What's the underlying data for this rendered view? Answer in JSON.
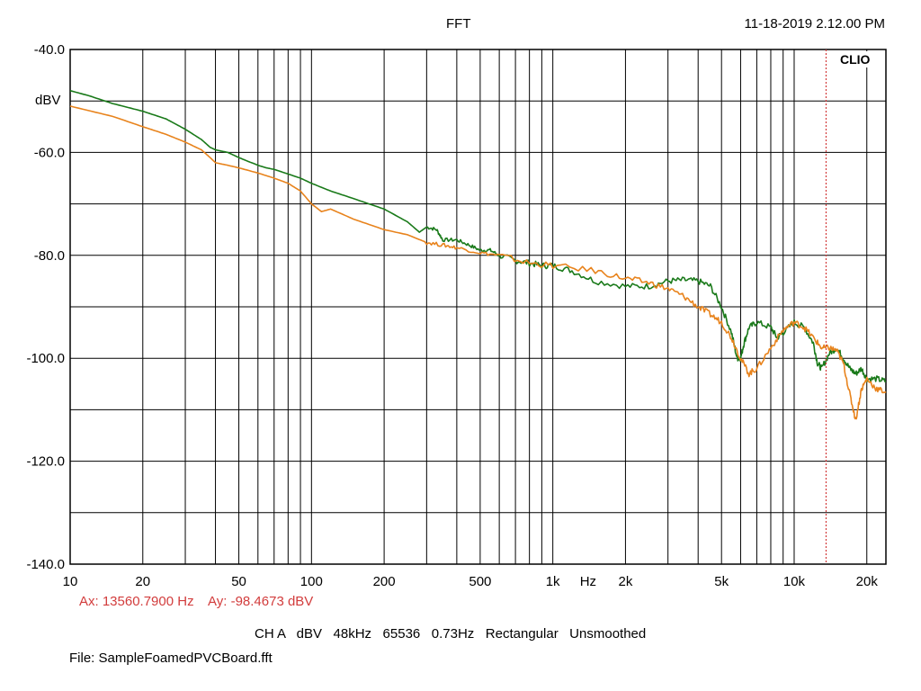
{
  "chart_data": {
    "type": "line",
    "title": "FFT",
    "timestamp": "11-18-2019 2.12.00 PM",
    "brand": "CLIO",
    "ylabel": "dBV",
    "xlabel": "Hz",
    "x_scale": "log",
    "xlim": [
      10,
      24000
    ],
    "ylim": [
      -140,
      -40
    ],
    "y_ticks": [
      -40,
      -60,
      -80,
      -100,
      -120,
      -140
    ],
    "y_tick_labels": [
      "-40.0",
      "-60.0",
      "-80.0",
      "-100.0",
      "-120.0",
      "-140.0"
    ],
    "x_ticks": [
      10,
      20,
      50,
      100,
      200,
      500,
      1000,
      2000,
      5000,
      10000,
      20000
    ],
    "x_tick_labels": [
      "10",
      "20",
      "50",
      "100",
      "200",
      "500",
      "1k",
      "2k",
      "5k",
      "10k",
      "20k"
    ],
    "grid": true,
    "cursor": {
      "x": 13560.79,
      "color": "#d23c3c"
    },
    "series": [
      {
        "color": "#1a7a1a",
        "points": [
          [
            10,
            -48
          ],
          [
            12,
            -49
          ],
          [
            15,
            -50.5
          ],
          [
            20,
            -52
          ],
          [
            25,
            -53.5
          ],
          [
            30,
            -55.5
          ],
          [
            35,
            -57.5
          ],
          [
            38,
            -59
          ],
          [
            40,
            -59.5
          ],
          [
            45,
            -60
          ],
          [
            50,
            -61
          ],
          [
            55,
            -61.8
          ],
          [
            58,
            -62.2
          ],
          [
            60,
            -62.5
          ],
          [
            65,
            -63
          ],
          [
            70,
            -63.3
          ],
          [
            80,
            -64.2
          ],
          [
            90,
            -65
          ],
          [
            100,
            -66
          ],
          [
            120,
            -67.5
          ],
          [
            150,
            -69
          ],
          [
            200,
            -71
          ],
          [
            250,
            -73.5
          ],
          [
            280,
            -75.5
          ],
          [
            300,
            -74.5
          ],
          [
            330,
            -75
          ],
          [
            350,
            -77
          ],
          [
            400,
            -77
          ],
          [
            450,
            -78
          ],
          [
            500,
            -79
          ],
          [
            550,
            -79
          ],
          [
            600,
            -80
          ],
          [
            700,
            -81
          ],
          [
            800,
            -81.5
          ],
          [
            900,
            -82
          ],
          [
            1000,
            -82
          ],
          [
            1200,
            -83
          ],
          [
            1500,
            -85
          ],
          [
            2000,
            -86
          ],
          [
            2500,
            -86
          ],
          [
            3000,
            -85
          ],
          [
            3500,
            -84.8
          ],
          [
            4000,
            -85
          ],
          [
            4500,
            -86
          ],
          [
            5000,
            -90
          ],
          [
            5500,
            -95
          ],
          [
            5800,
            -100
          ],
          [
            6000,
            -100
          ],
          [
            6200,
            -97
          ],
          [
            6500,
            -94
          ],
          [
            7000,
            -93
          ],
          [
            8000,
            -94
          ],
          [
            8500,
            -96
          ],
          [
            9000,
            -95
          ],
          [
            10000,
            -93
          ],
          [
            11000,
            -94
          ],
          [
            12000,
            -97
          ],
          [
            12500,
            -101
          ],
          [
            13000,
            -102
          ],
          [
            14000,
            -99
          ],
          [
            15000,
            -98
          ],
          [
            16000,
            -100
          ],
          [
            17000,
            -102
          ],
          [
            18000,
            -103
          ],
          [
            19000,
            -102
          ],
          [
            20000,
            -104
          ],
          [
            22000,
            -104
          ],
          [
            24000,
            -104.5
          ]
        ]
      },
      {
        "color": "#e8831c",
        "points": [
          [
            10,
            -51
          ],
          [
            15,
            -53
          ],
          [
            20,
            -55
          ],
          [
            25,
            -56.5
          ],
          [
            30,
            -58
          ],
          [
            35,
            -59.5
          ],
          [
            38,
            -61
          ],
          [
            40,
            -62
          ],
          [
            45,
            -62.5
          ],
          [
            50,
            -63
          ],
          [
            60,
            -64
          ],
          [
            70,
            -65
          ],
          [
            80,
            -66
          ],
          [
            90,
            -67.5
          ],
          [
            100,
            -70
          ],
          [
            110,
            -71.5
          ],
          [
            120,
            -71
          ],
          [
            150,
            -73
          ],
          [
            200,
            -75
          ],
          [
            250,
            -76
          ],
          [
            300,
            -77.5
          ],
          [
            350,
            -78
          ],
          [
            400,
            -78.5
          ],
          [
            500,
            -79.5
          ],
          [
            600,
            -80
          ],
          [
            800,
            -81.5
          ],
          [
            1000,
            -82
          ],
          [
            1500,
            -83
          ],
          [
            2000,
            -84.5
          ],
          [
            2500,
            -85.3
          ],
          [
            3000,
            -86.5
          ],
          [
            3500,
            -88
          ],
          [
            4000,
            -90
          ],
          [
            4500,
            -91.5
          ],
          [
            5000,
            -93
          ],
          [
            5500,
            -96
          ],
          [
            6000,
            -100
          ],
          [
            6500,
            -103
          ],
          [
            7000,
            -102
          ],
          [
            8000,
            -98
          ],
          [
            9000,
            -94.5
          ],
          [
            10000,
            -93
          ],
          [
            11000,
            -94
          ],
          [
            12000,
            -96
          ],
          [
            13000,
            -98
          ],
          [
            14000,
            -98
          ],
          [
            15000,
            -98.5
          ],
          [
            16000,
            -101
          ],
          [
            17000,
            -107
          ],
          [
            18000,
            -112
          ],
          [
            19000,
            -106
          ],
          [
            20000,
            -104
          ],
          [
            22000,
            -106
          ],
          [
            24000,
            -106.5
          ]
        ]
      }
    ]
  },
  "cursor_readout": {
    "ax": "Ax: 13560.7900 Hz",
    "ay": "Ay: -98.4673 dBV"
  },
  "settings_line": "CH A   dBV   48kHz   65536   0.73Hz   Rectangular   Unsmoothed",
  "file_line": "File: SampleFoamedPVCBoard.fft"
}
